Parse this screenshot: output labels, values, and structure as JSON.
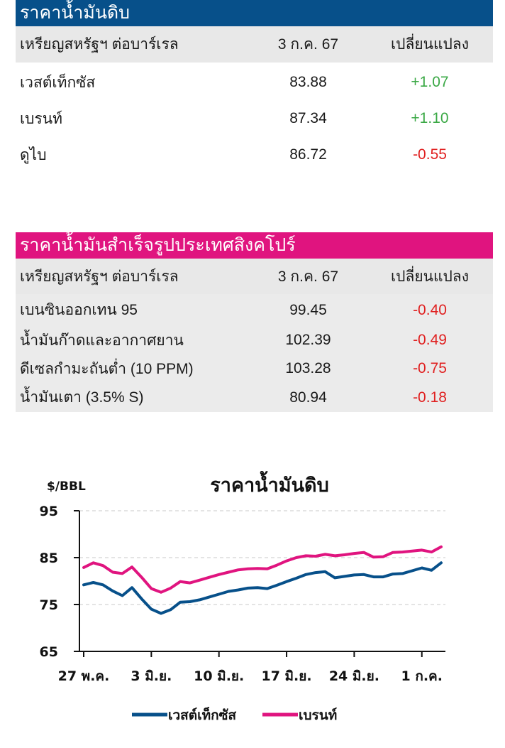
{
  "crude_table": {
    "title": "ราคาน้ำมันดิบ",
    "header_color": "#07508a",
    "columns": [
      "เหรียญสหรัฐฯ ต่อบาร์เรล",
      "3 ก.ค. 67",
      "เปลี่ยนแปลง"
    ],
    "rows": [
      {
        "name": "เวสต์เท็กซัส",
        "price": "83.88",
        "change": "+1.07"
      },
      {
        "name": "เบรนท์",
        "price": "87.34",
        "change": "+1.10"
      },
      {
        "name": "ดูไบ",
        "price": "86.72",
        "change": "-0.55"
      }
    ]
  },
  "singapore_table": {
    "title": "ราคาน้ำมันสำเร็จรูปประเทศสิงคโปร์",
    "header_color": "#e0147f",
    "columns": [
      "เหรียญสหรัฐฯ ต่อบาร์เรล",
      "3 ก.ค. 67",
      "เปลี่ยนแปลง"
    ],
    "rows": [
      {
        "name": "เบนซินออกเทน 95",
        "price": "99.45",
        "change": "-0.40"
      },
      {
        "name": "น้ำมันก๊าดและอากาศยาน",
        "price": "102.39",
        "change": "-0.49"
      },
      {
        "name": "ดีเซลกำมะถันต่ำ (10 PPM)",
        "price": "103.28",
        "change": "-0.75"
      },
      {
        "name": "น้ำมันเตา (3.5% S)",
        "price": "80.94",
        "change": "-0.18"
      }
    ]
  },
  "colors": {
    "positive": "#3aa845",
    "negative": "#e02020"
  },
  "chart_data": {
    "type": "line",
    "title": "ราคาน้ำมันดิบ",
    "ylabel": "$/BBL",
    "ylim": [
      65,
      95
    ],
    "yticks": [
      65,
      75,
      85,
      95
    ],
    "grid": true,
    "legend_position": "bottom",
    "x_tick_labels": [
      "27 พ.ค.",
      "3 มิ.ย.",
      "10 มิ.ย.",
      "17 มิ.ย.",
      "24 มิ.ย.",
      "1 ก.ค."
    ],
    "x": [
      "2024-05-27",
      "2024-05-28",
      "2024-05-29",
      "2024-05-30",
      "2024-05-31",
      "2024-06-01",
      "2024-06-02",
      "2024-06-03",
      "2024-06-04",
      "2024-06-05",
      "2024-06-06",
      "2024-06-07",
      "2024-06-08",
      "2024-06-09",
      "2024-06-10",
      "2024-06-11",
      "2024-06-12",
      "2024-06-13",
      "2024-06-14",
      "2024-06-15",
      "2024-06-16",
      "2024-06-17",
      "2024-06-18",
      "2024-06-19",
      "2024-06-20",
      "2024-06-21",
      "2024-06-22",
      "2024-06-23",
      "2024-06-24",
      "2024-06-25",
      "2024-06-26",
      "2024-06-27",
      "2024-06-28",
      "2024-06-29",
      "2024-06-30",
      "2024-07-01",
      "2024-07-02",
      "2024-07-03"
    ],
    "series": [
      {
        "name": "เวสต์เท็กซัส",
        "color": "#07508a",
        "values": [
          79.2,
          79.7,
          79.2,
          77.9,
          76.9,
          78.6,
          76.2,
          74.0,
          73.1,
          73.9,
          75.5,
          75.6,
          76.0,
          76.6,
          77.2,
          77.8,
          78.1,
          78.5,
          78.6,
          78.4,
          79.1,
          79.9,
          80.6,
          81.4,
          81.8,
          82.0,
          80.7,
          81.0,
          81.3,
          81.4,
          80.9,
          80.9,
          81.5,
          81.6,
          82.2,
          82.8,
          82.3,
          83.9
        ]
      },
      {
        "name": "เบรนท์",
        "color": "#e0147f",
        "values": [
          82.9,
          83.9,
          83.3,
          81.9,
          81.6,
          83.0,
          80.8,
          78.4,
          77.6,
          78.5,
          79.9,
          79.6,
          80.2,
          80.8,
          81.4,
          81.9,
          82.4,
          82.6,
          82.7,
          82.6,
          83.4,
          84.3,
          85.0,
          85.4,
          85.3,
          85.7,
          85.4,
          85.6,
          85.9,
          86.1,
          85.1,
          85.2,
          86.1,
          86.2,
          86.4,
          86.6,
          86.2,
          87.3
        ]
      }
    ]
  }
}
